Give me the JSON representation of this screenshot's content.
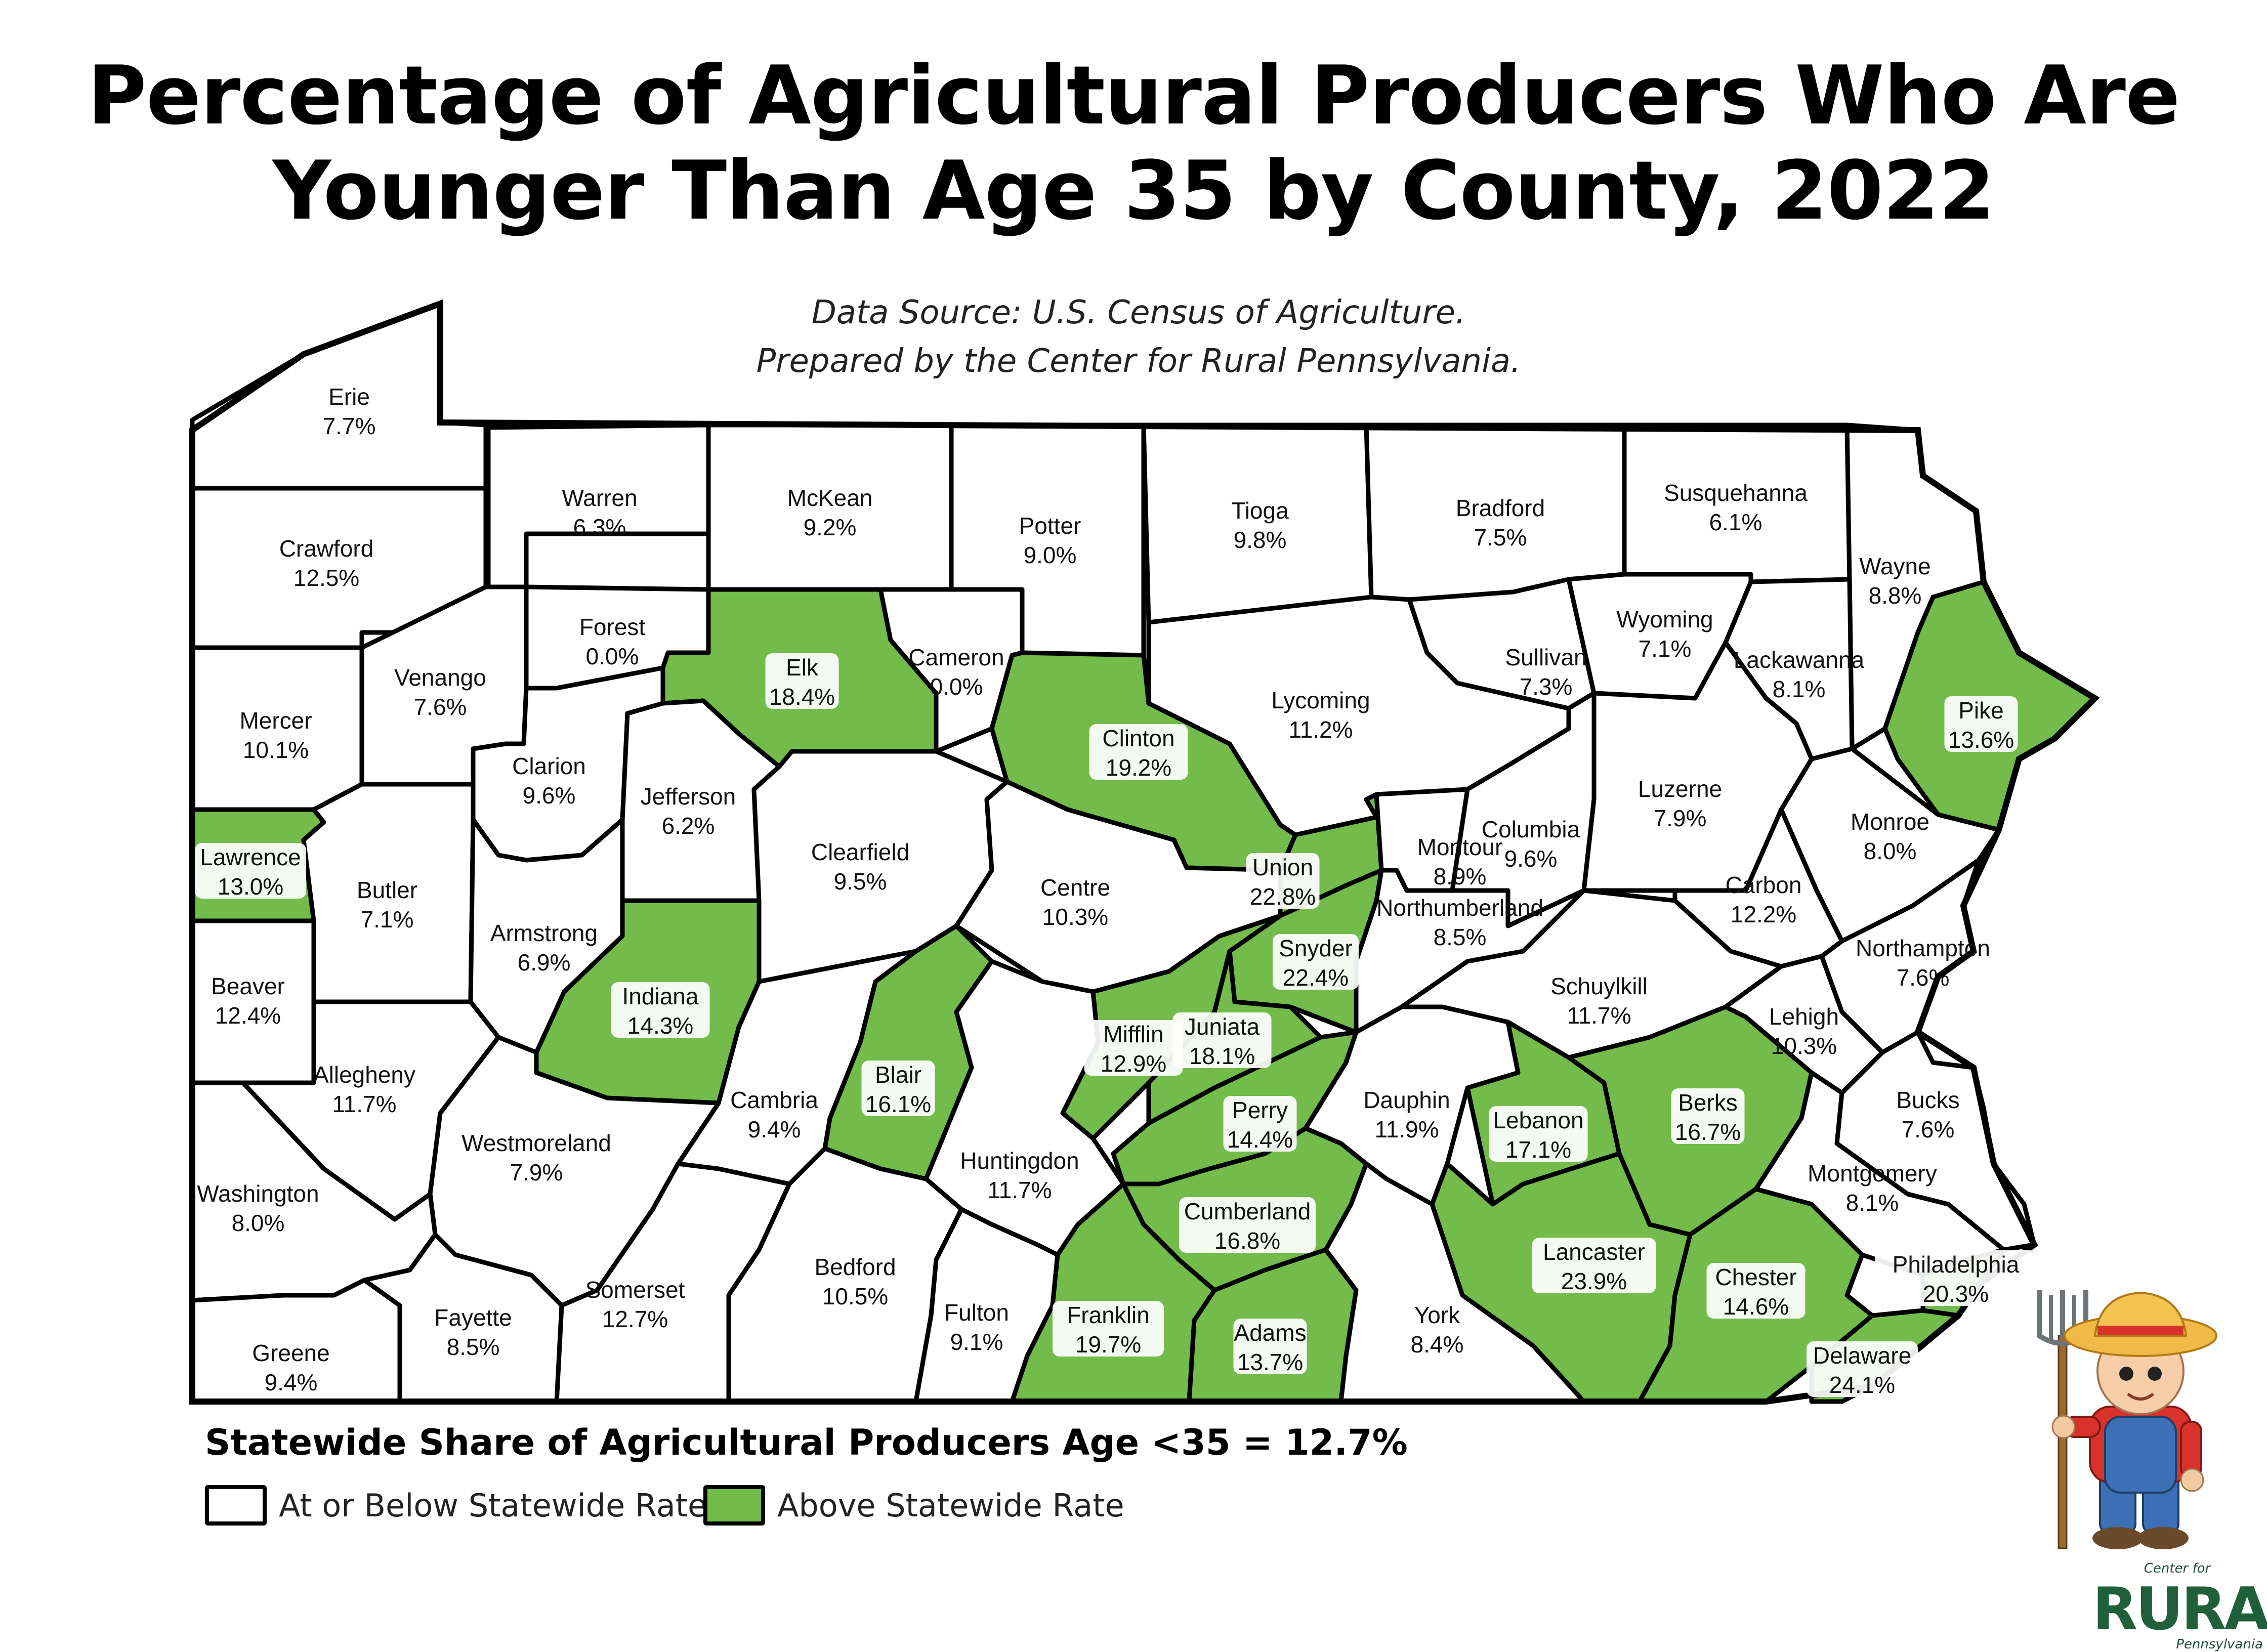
{
  "title": {
    "line1": "Percentage of Agricultural Producers Who Are",
    "line2": "Younger Than Age 35 by County, 2022"
  },
  "source": {
    "line1": "Data Source: U.S. Census of Agriculture.",
    "line2": "Prepared by the Center for Rural Pennsylvania."
  },
  "statewide": "Statewide Share of Agricultural Producers Age <35 = 12.7%",
  "legend": {
    "low": "At or Below Statewide Rate",
    "high": "Above Statewide Rate"
  },
  "colors": {
    "above": "#73bb4a",
    "at_or_below": "#ffffff",
    "border": "#000000",
    "logo_green": "#1f5f3a"
  },
  "logo": {
    "line1": "Center for",
    "line2": "RURAL",
    "line3": "Pennsylvania"
  },
  "counties": [
    {
      "name": "Erie",
      "value": "7.7%"
    },
    {
      "name": "Crawford",
      "value": "12.5%"
    },
    {
      "name": "Warren",
      "value": "6.3%"
    },
    {
      "name": "McKean",
      "value": "9.2%"
    },
    {
      "name": "Potter",
      "value": "9.0%"
    },
    {
      "name": "Tioga",
      "value": "9.8%"
    },
    {
      "name": "Bradford",
      "value": "7.5%"
    },
    {
      "name": "Susquehanna",
      "value": "6.1%"
    },
    {
      "name": "Wayne",
      "value": "8.8%"
    },
    {
      "name": "Forest",
      "value": "0.0%"
    },
    {
      "name": "Venango",
      "value": "7.6%"
    },
    {
      "name": "Mercer",
      "value": "10.1%"
    },
    {
      "name": "Elk",
      "value": "18.4%"
    },
    {
      "name": "Cameron",
      "value": "0.0%"
    },
    {
      "name": "Clinton",
      "value": "19.2%"
    },
    {
      "name": "Lycoming",
      "value": "11.2%"
    },
    {
      "name": "Sullivan",
      "value": "7.3%"
    },
    {
      "name": "Wyoming",
      "value": "7.1%"
    },
    {
      "name": "Lackawanna",
      "value": "8.1%"
    },
    {
      "name": "Pike",
      "value": "13.6%"
    },
    {
      "name": "Clarion",
      "value": "9.6%"
    },
    {
      "name": "Jefferson",
      "value": "6.2%"
    },
    {
      "name": "Clearfield",
      "value": "9.5%"
    },
    {
      "name": "Lawrence",
      "value": "13.0%"
    },
    {
      "name": "Butler",
      "value": "7.1%"
    },
    {
      "name": "Armstrong",
      "value": "6.9%"
    },
    {
      "name": "Centre",
      "value": "10.3%"
    },
    {
      "name": "Union",
      "value": "22.8%"
    },
    {
      "name": "Montour",
      "value": "8.9%"
    },
    {
      "name": "Columbia",
      "value": "9.6%"
    },
    {
      "name": "Luzerne",
      "value": "7.9%"
    },
    {
      "name": "Monroe",
      "value": "8.0%"
    },
    {
      "name": "Carbon",
      "value": "12.2%"
    },
    {
      "name": "Northumberland",
      "value": "8.5%"
    },
    {
      "name": "Snyder",
      "value": "22.4%"
    },
    {
      "name": "Beaver",
      "value": "12.4%"
    },
    {
      "name": "Indiana",
      "value": "14.3%"
    },
    {
      "name": "Northampton",
      "value": "7.6%"
    },
    {
      "name": "Schuylkill",
      "value": "11.7%"
    },
    {
      "name": "Lehigh",
      "value": "10.3%"
    },
    {
      "name": "Allegheny",
      "value": "11.7%"
    },
    {
      "name": "Mifflin",
      "value": "12.9%"
    },
    {
      "name": "Juniata",
      "value": "18.1%"
    },
    {
      "name": "Blair",
      "value": "16.1%"
    },
    {
      "name": "Cambria",
      "value": "9.4%"
    },
    {
      "name": "Westmoreland",
      "value": "7.9%"
    },
    {
      "name": "Perry",
      "value": "14.4%"
    },
    {
      "name": "Dauphin",
      "value": "11.9%"
    },
    {
      "name": "Lebanon",
      "value": "17.1%"
    },
    {
      "name": "Berks",
      "value": "16.7%"
    },
    {
      "name": "Bucks",
      "value": "7.6%"
    },
    {
      "name": "Washington",
      "value": "8.0%"
    },
    {
      "name": "Huntingdon",
      "value": "11.7%"
    },
    {
      "name": "Montgomery",
      "value": "8.1%"
    },
    {
      "name": "Cumberland",
      "value": "16.8%"
    },
    {
      "name": "Lancaster",
      "value": "23.9%"
    },
    {
      "name": "Chester",
      "value": "14.6%"
    },
    {
      "name": "Philadelphia",
      "value": "20.3%"
    },
    {
      "name": "Somerset",
      "value": "12.7%"
    },
    {
      "name": "Bedford",
      "value": "10.5%"
    },
    {
      "name": "Fulton",
      "value": "9.1%"
    },
    {
      "name": "Franklin",
      "value": "19.7%"
    },
    {
      "name": "Adams",
      "value": "13.7%"
    },
    {
      "name": "York",
      "value": "8.4%"
    },
    {
      "name": "Greene",
      "value": "9.4%"
    },
    {
      "name": "Fayette",
      "value": "8.5%"
    },
    {
      "name": "Delaware",
      "value": "24.1%"
    }
  ]
}
